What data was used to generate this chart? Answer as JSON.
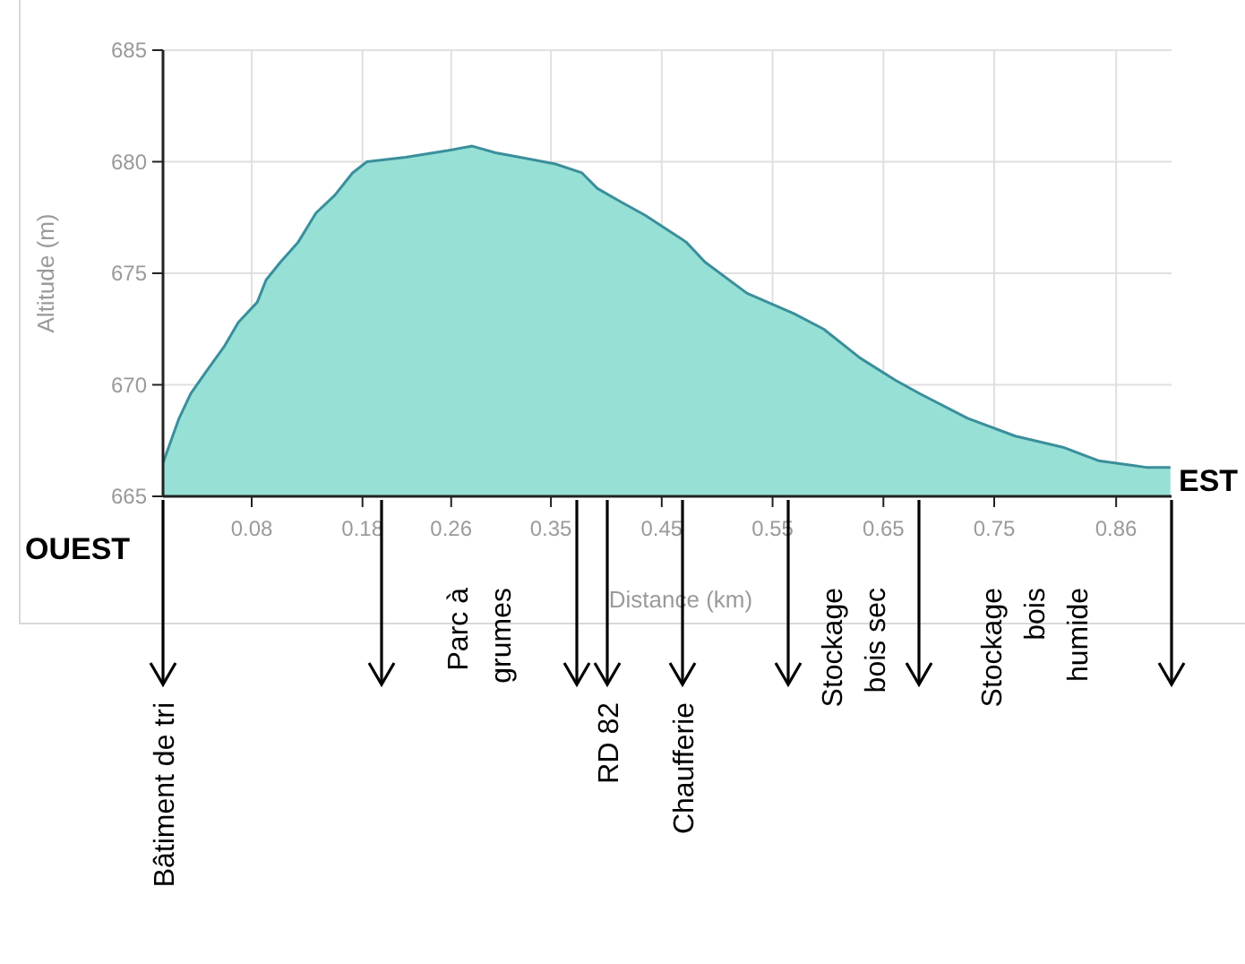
{
  "chart_data": {
    "type": "area",
    "xlabel": "Distance (km)",
    "ylabel": "Altitude (m)",
    "series": [
      {
        "color": "#97e0d5",
        "x": [
          0,
          0.0145,
          0.025,
          0.039,
          0.055,
          0.068,
          0.085,
          0.093,
          0.106,
          0.122,
          0.138,
          0.155,
          0.171,
          0.184,
          0.219,
          0.257,
          0.279,
          0.3,
          0.322,
          0.354,
          0.378,
          0.392,
          0.413,
          0.435,
          0.472,
          0.489,
          0.527,
          0.569,
          0.596,
          0.629,
          0.661,
          0.683,
          0.726,
          0.769,
          0.812,
          0.844,
          0.887,
          0.909
        ],
        "values": [
          666.5,
          668.5,
          669.6,
          670.6,
          671.7,
          672.8,
          673.7,
          674.7,
          675.5,
          676.4,
          677.7,
          678.5,
          679.5,
          680.0,
          680.2,
          680.5,
          680.7,
          680.4,
          680.2,
          679.9,
          679.5,
          678.8,
          678.2,
          677.6,
          676.4,
          675.5,
          674.1,
          673.2,
          672.5,
          671.2,
          670.2,
          669.6,
          668.5,
          667.7,
          667.2,
          666.6,
          666.3,
          666.3
        ]
      }
    ],
    "xlim": [
      0,
      0.91
    ],
    "xticks": [
      0.08,
      0.18,
      0.26,
      0.35,
      0.45,
      0.55,
      0.65,
      0.75,
      0.86
    ],
    "ylim": [
      665,
      685
    ],
    "yticks": [
      665,
      670,
      675,
      680,
      685
    ],
    "grid": true,
    "annotations": [
      "OUEST",
      "EST",
      "Bâtiment de tri",
      "Parc à grumes",
      "RD 82",
      "Chaufferie",
      "Stockage bois sec",
      "Stockage bois humide"
    ]
  }
}
